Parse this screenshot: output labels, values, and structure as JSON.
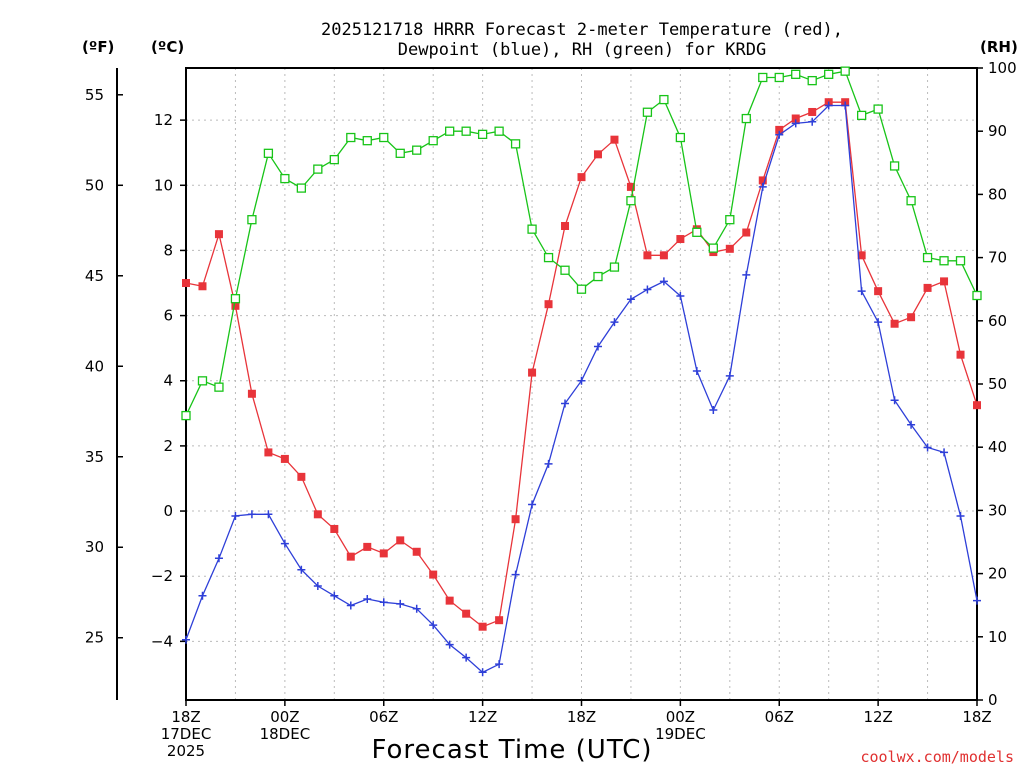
{
  "chart_data": {
    "type": "line",
    "title_line1": "2025121718 HRRR Forecast 2-meter Temperature (red),",
    "title_line2": "Dewpoint (blue), RH (green) for KRDG",
    "unit_f": "(ºF)",
    "unit_c": "(ºC)",
    "unit_rh": "(RH)",
    "xlabel": "Forecast Time (UTC)",
    "credit": "coolwx.com/models",
    "x_hours": [
      0,
      1,
      2,
      3,
      4,
      5,
      6,
      7,
      8,
      9,
      10,
      11,
      12,
      13,
      14,
      15,
      16,
      17,
      18,
      19,
      20,
      21,
      22,
      23,
      24,
      25,
      26,
      27,
      28,
      29,
      30,
      31,
      32,
      33,
      34,
      35,
      36,
      37,
      38,
      39,
      40,
      41,
      42,
      43,
      44,
      45,
      46,
      47,
      48
    ],
    "xlim": [
      0,
      48
    ],
    "celsius_range": [
      -5.8,
      13.6
    ],
    "rh_range": [
      0,
      100
    ],
    "fahrenheit_ticks": [
      25,
      30,
      35,
      40,
      45,
      50,
      55
    ],
    "celsius_ticks": [
      -4,
      -2,
      0,
      2,
      4,
      6,
      8,
      10,
      12
    ],
    "rh_ticks": [
      0,
      10,
      20,
      30,
      40,
      50,
      60,
      70,
      80,
      90,
      100
    ],
    "x_ticks": [
      {
        "hour": 0,
        "lines": [
          "18Z",
          "17DEC",
          "2025"
        ]
      },
      {
        "hour": 6,
        "lines": [
          "00Z",
          "18DEC"
        ]
      },
      {
        "hour": 12,
        "lines": [
          "06Z"
        ]
      },
      {
        "hour": 18,
        "lines": [
          "12Z"
        ]
      },
      {
        "hour": 24,
        "lines": [
          "18Z"
        ]
      },
      {
        "hour": 30,
        "lines": [
          "00Z",
          "19DEC"
        ]
      },
      {
        "hour": 36,
        "lines": [
          "06Z"
        ]
      },
      {
        "hour": 42,
        "lines": [
          "12Z"
        ]
      },
      {
        "hour": 48,
        "lines": [
          "18Z"
        ]
      }
    ],
    "series": [
      {
        "name": "Temperature",
        "axis": "celsius",
        "color": "#e8343a",
        "marker": "filled-square",
        "values": [
          7.0,
          6.9,
          8.5,
          6.3,
          3.6,
          1.8,
          1.6,
          1.05,
          -0.1,
          -0.55,
          -1.4,
          -1.1,
          -1.3,
          -0.9,
          -1.25,
          -1.95,
          -2.75,
          -3.15,
          -3.55,
          -3.35,
          -0.25,
          4.25,
          6.35,
          8.75,
          10.25,
          10.95,
          11.4,
          9.95,
          7.85,
          7.85,
          8.35,
          8.65,
          7.95,
          8.05,
          8.55,
          10.15,
          11.7,
          12.05,
          12.25,
          12.55,
          12.55,
          7.85,
          6.75,
          5.75,
          5.95,
          6.85,
          7.05,
          4.8,
          3.25
        ]
      },
      {
        "name": "Dewpoint",
        "axis": "celsius",
        "color": "#2e3fd8",
        "marker": "plus",
        "values": [
          -3.95,
          -2.6,
          -1.45,
          -0.15,
          -0.1,
          -0.1,
          -1.0,
          -1.8,
          -2.3,
          -2.6,
          -2.9,
          -2.7,
          -2.8,
          -2.85,
          -3.0,
          -3.5,
          -4.1,
          -4.5,
          -4.95,
          -4.7,
          -1.95,
          0.2,
          1.45,
          3.3,
          4.0,
          5.05,
          5.8,
          6.5,
          6.8,
          7.05,
          6.6,
          4.3,
          3.1,
          4.15,
          7.25,
          9.95,
          11.55,
          11.9,
          11.95,
          12.45,
          12.45,
          6.75,
          5.8,
          3.4,
          2.65,
          1.95,
          1.8,
          -0.15,
          -2.75
        ]
      },
      {
        "name": "RH",
        "axis": "rh",
        "color": "#18c418",
        "marker": "open-square",
        "values": [
          45,
          50.5,
          49.5,
          63.5,
          76,
          86.5,
          82.5,
          81,
          84,
          85.5,
          89,
          88.5,
          89,
          86.5,
          87,
          88.5,
          90,
          90,
          89.5,
          90,
          88,
          74.5,
          70,
          68,
          65,
          67,
          68.5,
          79,
          93,
          95,
          89,
          74,
          71.5,
          76,
          92,
          98.5,
          98.5,
          99,
          98,
          99,
          99.5,
          92.5,
          93.5,
          84.5,
          79,
          70,
          69.5,
          69.5,
          64
        ]
      }
    ]
  }
}
